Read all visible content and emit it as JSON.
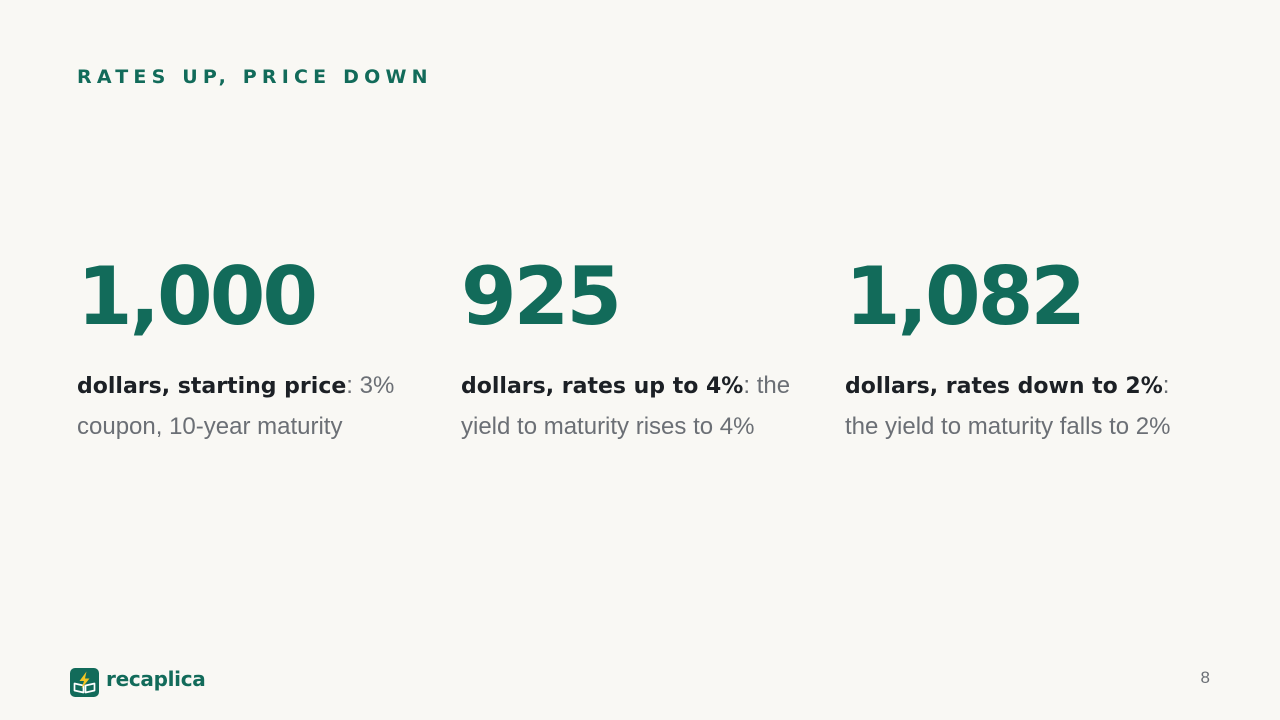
{
  "slide": {
    "eyebrow": "RATES UP, PRICE DOWN",
    "page_number": "8"
  },
  "stats": [
    {
      "value": "1,000",
      "lead": "dollars, starting price",
      "detail": ": 3% coupon, 10-year maturity"
    },
    {
      "value": "925",
      "lead": "dollars, rates up to 4%",
      "detail": ": the yield to maturity rises to 4%"
    },
    {
      "value": "1,082",
      "lead": "dollars, rates down to 2%",
      "detail": ": the yield to maturity falls to 2%"
    }
  ],
  "brand": {
    "name": "recaplica",
    "logo_icon": "lightning-book-icon",
    "colors": {
      "accent": "#126b5a",
      "bolt": "#f3c623"
    }
  }
}
